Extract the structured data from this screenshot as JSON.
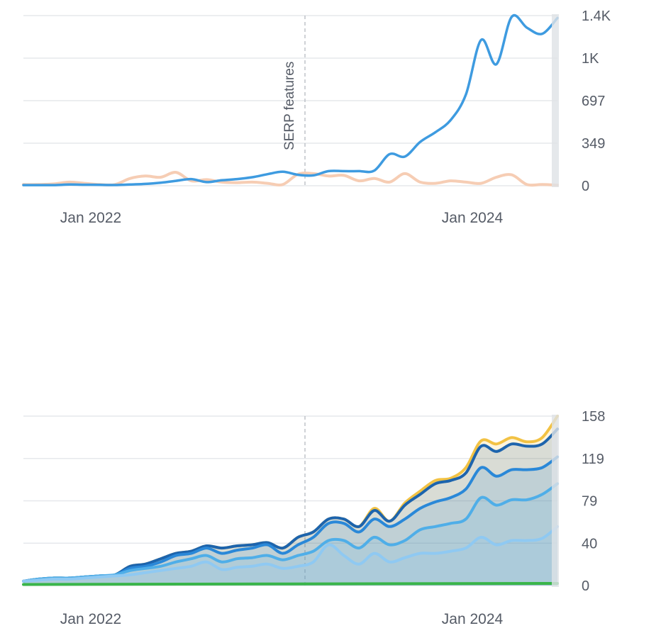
{
  "colors": {
    "grid": "#e6e8ec",
    "axis_text": "#555b66",
    "marker_line": "#b5b9c0",
    "top_series_main": "#3e9be0",
    "top_series_secondary": "#f6cdb4",
    "bottom_top_band": "#f2c244",
    "bottom_series_1": "#1d64ad",
    "bottom_series_2": "#2a88d8",
    "bottom_series_3": "#4faee8",
    "bottom_series_4": "#8fc9f2",
    "bottom_baseline": "#3ab54a",
    "edge_bar": "#dfe2e6"
  },
  "chart_data": [
    {
      "type": "line",
      "x_ticks": [
        "Jan 2022",
        "Jan 2024"
      ],
      "y_ticks": [
        "0",
        "349",
        "697",
        "1K",
        "1.4K"
      ],
      "ylim": [
        0,
        1400
      ],
      "grid": true,
      "annotation": "SERP features",
      "series": [
        {
          "color_key": "top_series_main",
          "x": [
            "2021-06",
            "2021-07",
            "2021-08",
            "2021-09",
            "2021-10",
            "2021-11",
            "2021-12",
            "2022-01",
            "2022-02",
            "2022-03",
            "2022-04",
            "2022-05",
            "2022-06",
            "2022-07",
            "2022-08",
            "2022-09",
            "2022-10",
            "2022-11",
            "2022-12",
            "2023-01",
            "2023-02",
            "2023-03",
            "2023-04",
            "2023-05",
            "2023-06",
            "2023-07",
            "2023-08",
            "2023-09",
            "2023-10",
            "2023-11",
            "2023-12",
            "2024-01",
            "2024-02",
            "2024-03",
            "2024-04",
            "2024-05"
          ],
          "values": [
            5,
            5,
            5,
            10,
            8,
            7,
            6,
            10,
            15,
            25,
            40,
            55,
            30,
            45,
            55,
            70,
            95,
            115,
            90,
            85,
            120,
            120,
            120,
            125,
            260,
            240,
            360,
            440,
            540,
            750,
            1200,
            1000,
            1390,
            1300,
            1250,
            1380
          ]
        },
        {
          "color_key": "top_series_secondary",
          "x": [
            "2021-06",
            "2021-07",
            "2021-08",
            "2021-09",
            "2021-10",
            "2021-11",
            "2021-12",
            "2022-01",
            "2022-02",
            "2022-03",
            "2022-04",
            "2022-05",
            "2022-06",
            "2022-07",
            "2022-08",
            "2022-09",
            "2022-10",
            "2022-11",
            "2022-12",
            "2023-01",
            "2023-02",
            "2023-03",
            "2023-04",
            "2023-05",
            "2023-06",
            "2023-07",
            "2023-08",
            "2023-09",
            "2023-10",
            "2023-11",
            "2023-12",
            "2024-01",
            "2024-02",
            "2024-03",
            "2024-04",
            "2024-05"
          ],
          "values": [
            10,
            10,
            15,
            30,
            20,
            10,
            10,
            60,
            80,
            70,
            110,
            40,
            50,
            30,
            25,
            30,
            20,
            10,
            95,
            100,
            80,
            85,
            40,
            60,
            30,
            100,
            30,
            20,
            40,
            30,
            20,
            70,
            90,
            10,
            10,
            5
          ]
        }
      ]
    },
    {
      "type": "area",
      "x_ticks": [
        "Jan 2022",
        "Jan 2024"
      ],
      "y_ticks": [
        "0",
        "40",
        "79",
        "119",
        "158"
      ],
      "ylim": [
        0,
        158
      ],
      "grid": true,
      "series": [
        {
          "color_key": "bottom_top_band",
          "x": [
            "2021-06",
            "2021-07",
            "2021-08",
            "2021-09",
            "2021-10",
            "2021-11",
            "2021-12",
            "2022-01",
            "2022-02",
            "2022-03",
            "2022-04",
            "2022-05",
            "2022-06",
            "2022-07",
            "2022-08",
            "2022-09",
            "2022-10",
            "2022-11",
            "2022-12",
            "2023-01",
            "2023-02",
            "2023-03",
            "2023-04",
            "2023-05",
            "2023-06",
            "2023-07",
            "2023-08",
            "2023-09",
            "2023-10",
            "2023-11",
            "2023-12",
            "2024-01",
            "2024-02",
            "2024-03",
            "2024-04",
            "2024-05"
          ],
          "values": [
            4,
            6,
            7,
            7,
            8,
            9,
            10,
            18,
            20,
            25,
            30,
            32,
            37,
            35,
            37,
            38,
            40,
            35,
            45,
            50,
            62,
            62,
            55,
            72,
            60,
            77,
            88,
            98,
            100,
            110,
            135,
            132,
            138,
            134,
            138,
            158
          ]
        },
        {
          "color_key": "bottom_series_1",
          "x": [
            "2021-06",
            "2021-07",
            "2021-08",
            "2021-09",
            "2021-10",
            "2021-11",
            "2021-12",
            "2022-01",
            "2022-02",
            "2022-03",
            "2022-04",
            "2022-05",
            "2022-06",
            "2022-07",
            "2022-08",
            "2022-09",
            "2022-10",
            "2022-11",
            "2022-12",
            "2023-01",
            "2023-02",
            "2023-03",
            "2023-04",
            "2023-05",
            "2023-06",
            "2023-07",
            "2023-08",
            "2023-09",
            "2023-10",
            "2023-11",
            "2023-12",
            "2024-01",
            "2024-02",
            "2024-03",
            "2024-04",
            "2024-05"
          ],
          "values": [
            4,
            6,
            7,
            7,
            8,
            9,
            10,
            18,
            20,
            25,
            30,
            32,
            37,
            35,
            37,
            38,
            40,
            35,
            45,
            50,
            62,
            62,
            55,
            70,
            60,
            75,
            85,
            95,
            98,
            105,
            130,
            125,
            132,
            130,
            132,
            146
          ]
        },
        {
          "color_key": "bottom_series_2",
          "x": [
            "2021-06",
            "2021-07",
            "2021-08",
            "2021-09",
            "2021-10",
            "2021-11",
            "2021-12",
            "2022-01",
            "2022-02",
            "2022-03",
            "2022-04",
            "2022-05",
            "2022-06",
            "2022-07",
            "2022-08",
            "2022-09",
            "2022-10",
            "2022-11",
            "2022-12",
            "2023-01",
            "2023-02",
            "2023-03",
            "2023-04",
            "2023-05",
            "2023-06",
            "2023-07",
            "2023-08",
            "2023-09",
            "2023-10",
            "2023-11",
            "2023-12",
            "2024-01",
            "2024-02",
            "2024-03",
            "2024-04",
            "2024-05"
          ],
          "values": [
            4,
            6,
            7,
            7,
            8,
            9,
            10,
            16,
            18,
            22,
            28,
            30,
            35,
            30,
            33,
            35,
            38,
            30,
            38,
            45,
            58,
            58,
            50,
            62,
            55,
            62,
            72,
            78,
            82,
            90,
            110,
            102,
            108,
            108,
            110,
            120
          ]
        },
        {
          "color_key": "bottom_series_3",
          "x": [
            "2021-06",
            "2021-07",
            "2021-08",
            "2021-09",
            "2021-10",
            "2021-11",
            "2021-12",
            "2022-01",
            "2022-02",
            "2022-03",
            "2022-04",
            "2022-05",
            "2022-06",
            "2022-07",
            "2022-08",
            "2022-09",
            "2022-10",
            "2022-11",
            "2022-12",
            "2023-01",
            "2023-02",
            "2023-03",
            "2023-04",
            "2023-05",
            "2023-06",
            "2023-07",
            "2023-08",
            "2023-09",
            "2023-10",
            "2023-11",
            "2023-12",
            "2024-01",
            "2024-02",
            "2024-03",
            "2024-04",
            "2024-05"
          ],
          "values": [
            4,
            6,
            7,
            7,
            8,
            9,
            10,
            14,
            16,
            18,
            22,
            25,
            28,
            22,
            25,
            26,
            28,
            24,
            28,
            32,
            42,
            42,
            35,
            45,
            38,
            42,
            52,
            55,
            58,
            62,
            82,
            75,
            80,
            80,
            85,
            95
          ]
        },
        {
          "color_key": "bottom_series_4",
          "x": [
            "2021-06",
            "2021-07",
            "2021-08",
            "2021-09",
            "2021-10",
            "2021-11",
            "2021-12",
            "2022-01",
            "2022-02",
            "2022-03",
            "2022-04",
            "2022-05",
            "2022-06",
            "2022-07",
            "2022-08",
            "2022-09",
            "2022-10",
            "2022-11",
            "2022-12",
            "2023-01",
            "2023-02",
            "2023-03",
            "2023-04",
            "2023-05",
            "2023-06",
            "2023-07",
            "2023-08",
            "2023-09",
            "2023-10",
            "2023-11",
            "2023-12",
            "2024-01",
            "2024-02",
            "2024-03",
            "2024-04",
            "2024-05"
          ],
          "values": [
            4,
            5,
            6,
            6,
            7,
            8,
            9,
            10,
            12,
            14,
            16,
            18,
            22,
            15,
            17,
            18,
            20,
            16,
            18,
            22,
            38,
            28,
            20,
            30,
            22,
            26,
            30,
            30,
            32,
            35,
            45,
            38,
            42,
            42,
            44,
            55
          ]
        },
        {
          "color_key": "bottom_baseline",
          "x": [
            "2021-06",
            "2024-05"
          ],
          "values": [
            1,
            2
          ]
        }
      ]
    }
  ]
}
